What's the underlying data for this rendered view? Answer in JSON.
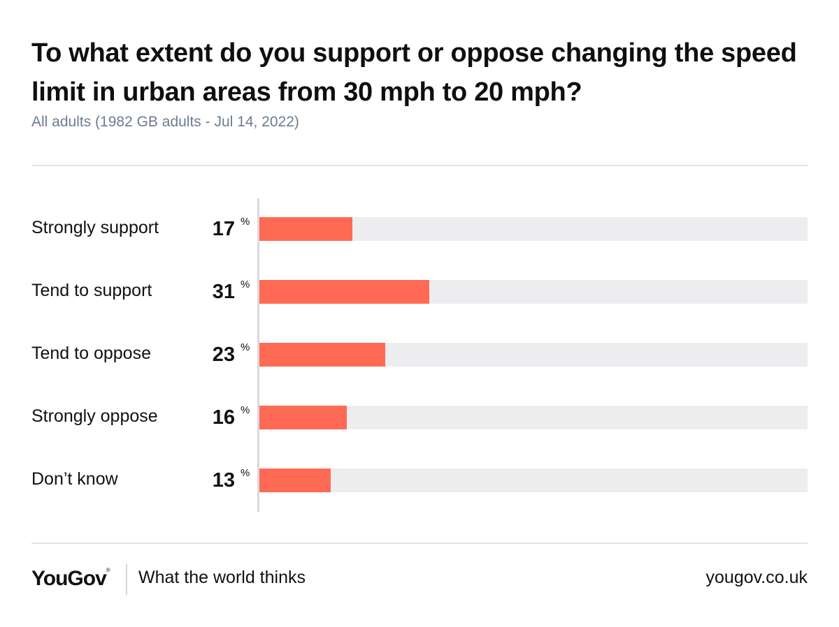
{
  "header": {
    "title": "To what extent do you support or oppose changing the speed limit in urban areas from 30 mph to 20 mph?",
    "subtitle": "All adults (1982 GB adults - Jul 14, 2022)"
  },
  "chart_data": {
    "type": "bar",
    "orientation": "horizontal",
    "categories": [
      "Strongly support",
      "Tend to support",
      "Tend to oppose",
      "Strongly oppose",
      "Don’t know"
    ],
    "values": [
      17,
      31,
      23,
      16,
      13
    ],
    "value_suffix": "%",
    "xlim": [
      0,
      100
    ],
    "grid": false,
    "colors": {
      "bar": "#ff6a55",
      "track": "#ededf0"
    }
  },
  "footer": {
    "logo": "YouGov",
    "logo_mark": "®",
    "tagline": "What the world thinks",
    "url": "yougov.co.uk"
  }
}
